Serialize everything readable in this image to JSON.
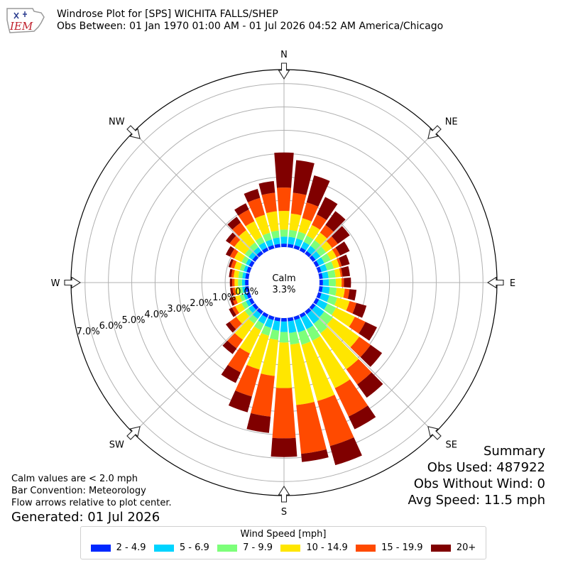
{
  "header": {
    "title": "Windrose Plot for [SPS] WICHITA FALLS/SHEP",
    "subtitle": "Obs Between: 01 Jan 1970 01:00 AM - 01 Jul 2026 04:52 AM America/Chicago",
    "logo_text": "IEM"
  },
  "summary": {
    "heading": "Summary",
    "obs_used": "Obs Used: 487922",
    "obs_without_wind": "Obs Without Wind: 0",
    "avg_speed": "Avg Speed: 11.5 mph"
  },
  "notes": {
    "calm_note": "Calm values are < 2.0 mph",
    "convention": "Bar Convention: Meteorology",
    "flow": "Flow arrows relative to plot center.",
    "generated": "Generated: 01 Jul 2026"
  },
  "legend": {
    "title": "Wind Speed [mph]",
    "items": [
      {
        "label": "2 - 4.9",
        "color": "#0028ff"
      },
      {
        "label": "5 - 6.9",
        "color": "#00d4ff"
      },
      {
        "label": "7 - 9.9",
        "color": "#7dff7a"
      },
      {
        "label": "10 - 14.9",
        "color": "#ffe600"
      },
      {
        "label": "15 - 19.9",
        "color": "#ff4a00"
      },
      {
        "label": "20+",
        "color": "#800000"
      }
    ]
  },
  "chart_data": {
    "type": "windrose",
    "calm": {
      "label": "Calm",
      "value": "3.3%"
    },
    "compass_labels": [
      "N",
      "NE",
      "E",
      "SE",
      "S",
      "SW",
      "W",
      "NW"
    ],
    "radial_labels": [
      "0.0%",
      "1.0%",
      "2.0%",
      "3.0%",
      "4.0%",
      "5.0%",
      "6.0%",
      "7.0%"
    ],
    "rmax": 7.6,
    "directions_deg": [
      0,
      10,
      20,
      30,
      40,
      50,
      60,
      70,
      80,
      90,
      100,
      110,
      120,
      130,
      140,
      150,
      160,
      170,
      180,
      190,
      200,
      210,
      220,
      230,
      240,
      250,
      260,
      270,
      280,
      290,
      300,
      310,
      320,
      330,
      340,
      350
    ],
    "cumulative_percent": [
      [
        0.15,
        0.45,
        0.75,
        1.55,
        2.55,
        4.05
      ],
      [
        0.15,
        0.45,
        0.75,
        1.45,
        2.35,
        3.75
      ],
      [
        0.15,
        0.45,
        0.75,
        1.35,
        2.05,
        3.25
      ],
      [
        0.15,
        0.42,
        0.72,
        1.22,
        1.72,
        2.55
      ],
      [
        0.15,
        0.42,
        0.72,
        1.12,
        1.52,
        2.25
      ],
      [
        0.15,
        0.4,
        0.7,
        1.02,
        1.32,
        1.95
      ],
      [
        0.15,
        0.4,
        0.7,
        0.98,
        1.15,
        1.6
      ],
      [
        0.15,
        0.4,
        0.7,
        0.95,
        1.05,
        1.4
      ],
      [
        0.15,
        0.4,
        0.7,
        0.92,
        1.0,
        1.32
      ],
      [
        0.15,
        0.4,
        0.7,
        0.95,
        1.05,
        1.35
      ],
      [
        0.15,
        0.45,
        0.75,
        1.1,
        1.3,
        1.6
      ],
      [
        0.15,
        0.5,
        0.85,
        1.4,
        1.7,
        2.15
      ],
      [
        0.15,
        0.55,
        0.95,
        1.85,
        2.35,
        2.9
      ],
      [
        0.15,
        0.6,
        1.05,
        2.45,
        3.05,
        3.65
      ],
      [
        0.15,
        0.65,
        1.15,
        3.05,
        3.85,
        4.55
      ],
      [
        0.15,
        0.7,
        1.25,
        3.5,
        4.85,
        5.45
      ],
      [
        0.15,
        0.7,
        1.25,
        3.75,
        5.75,
        6.6
      ],
      [
        0.15,
        0.65,
        1.15,
        3.75,
        5.85,
        6.2
      ],
      [
        0.15,
        0.6,
        1.05,
        3.0,
        5.15,
        5.95
      ],
      [
        0.15,
        0.55,
        0.95,
        2.5,
        4.25,
        4.95
      ],
      [
        0.15,
        0.5,
        0.85,
        2.35,
        3.55,
        4.25
      ],
      [
        0.15,
        0.45,
        0.75,
        1.85,
        2.75,
        3.25
      ],
      [
        0.15,
        0.4,
        0.65,
        1.5,
        1.95,
        2.25
      ],
      [
        0.15,
        0.35,
        0.55,
        1.0,
        1.35,
        1.55
      ],
      [
        0.15,
        0.3,
        0.5,
        0.8,
        0.95,
        1.1
      ],
      [
        0.15,
        0.28,
        0.45,
        0.65,
        0.8,
        0.9
      ],
      [
        0.15,
        0.28,
        0.45,
        0.6,
        0.7,
        0.8
      ],
      [
        0.15,
        0.28,
        0.45,
        0.6,
        0.7,
        0.8
      ],
      [
        0.15,
        0.28,
        0.45,
        0.65,
        0.75,
        0.85
      ],
      [
        0.15,
        0.28,
        0.45,
        0.7,
        0.85,
        0.95
      ],
      [
        0.15,
        0.3,
        0.5,
        0.85,
        1.05,
        1.25
      ],
      [
        0.15,
        0.35,
        0.55,
        1.1,
        1.35,
        1.55
      ],
      [
        0.15,
        0.35,
        0.6,
        1.25,
        1.65,
        1.95
      ],
      [
        0.15,
        0.4,
        0.65,
        1.4,
        1.95,
        2.25
      ],
      [
        0.15,
        0.4,
        0.7,
        1.5,
        2.25,
        2.65
      ],
      [
        0.15,
        0.42,
        0.72,
        1.55,
        2.35,
        2.85
      ]
    ],
    "bins": [
      "2 - 4.9",
      "5 - 6.9",
      "7 - 9.9",
      "10 - 14.9",
      "15 - 19.9",
      "20+"
    ]
  }
}
